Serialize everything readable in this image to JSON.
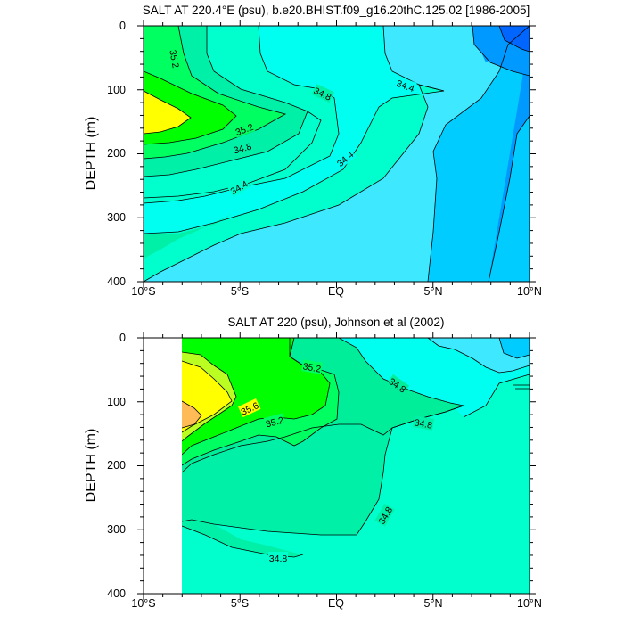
{
  "chart_data": [
    {
      "type": "contour",
      "title": "SALT AT 220.4°E (psu), b.e20.BHIST.f09_g16.20thC.125.02 [1986-2005]",
      "ylabel": "DEPTH (m)",
      "x_ticks": [
        "10°S",
        "5°S",
        "EQ",
        "5°N",
        "10°N"
      ],
      "y_ticks": [
        "0",
        "100",
        "200",
        "300",
        "400"
      ],
      "xlim": [
        -10,
        10
      ],
      "ylim": [
        400,
        0
      ],
      "contour_labels": [
        {
          "text": "35.2",
          "lat": -8.2,
          "depth": 50
        },
        {
          "text": "34.8",
          "lat": -0.9,
          "depth": 103
        },
        {
          "text": "34.4",
          "lat": 3.2,
          "depth": 92
        },
        {
          "text": "35.2",
          "lat": -4.8,
          "depth": 160
        },
        {
          "text": "34.8",
          "lat": -5.4,
          "depth": 190
        },
        {
          "text": "34.4",
          "lat": 0.4,
          "depth": 200
        },
        {
          "text": "34.4",
          "lat": -5.4,
          "depth": 255
        }
      ]
    },
    {
      "type": "contour",
      "title": "SALT AT 220 (psu), Johnson et al (2002)",
      "ylabel": "DEPTH (m)",
      "x_ticks": [
        "10°S",
        "5°S",
        "EQ",
        "5°N",
        "10°N"
      ],
      "y_ticks": [
        "0",
        "100",
        "200",
        "300",
        "400"
      ],
      "xlim": [
        -10,
        10
      ],
      "ylim": [
        400,
        0
      ],
      "contour_labels": [
        {
          "text": "35.2",
          "lat": -1.5,
          "depth": 48
        },
        {
          "text": "34.8",
          "lat": 3.2,
          "depth": 75
        },
        {
          "text": "35.6",
          "lat": -4.8,
          "depth": 108
        },
        {
          "text": "35.2",
          "lat": -3.2,
          "depth": 140
        },
        {
          "text": "34.8",
          "lat": 4.6,
          "depth": 140
        },
        {
          "text": "34.8",
          "lat": 2.5,
          "depth": 280
        },
        {
          "text": "34.8",
          "lat": -3.0,
          "depth": 343
        }
      ]
    }
  ],
  "colors": {
    "light_blue": "#3ee8ff",
    "cyan": "#00fff0",
    "aqua": "#00ffcc",
    "teal_green": "#00f0a8",
    "mint": "#00ee99",
    "green": "#00ff60",
    "bright_green": "#00ff00",
    "yellow_green": "#bbff22",
    "yellow": "#ffff00",
    "orange": "#ffbb55",
    "sky": "#00ccff",
    "blue": "#0099ff",
    "deep_blue": "#0066ff"
  }
}
